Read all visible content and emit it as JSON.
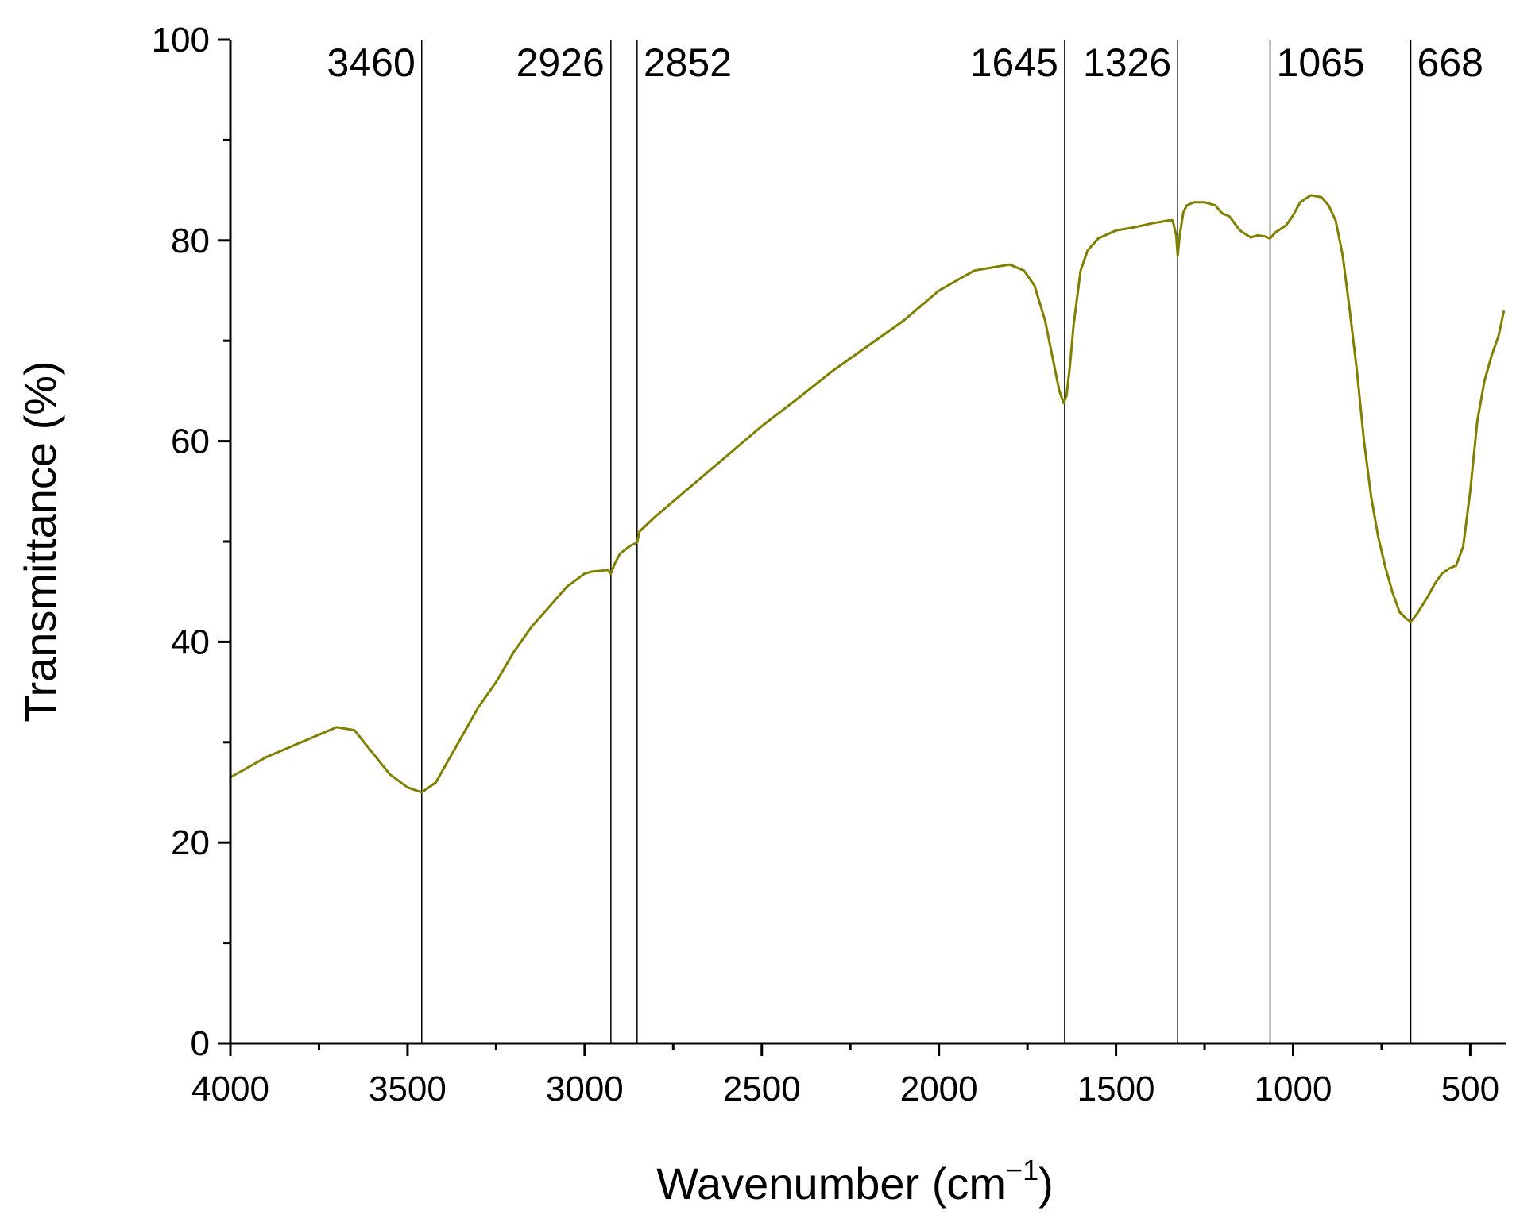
{
  "chart_data": {
    "type": "line",
    "xlabel": "Wavenumber (cm",
    "xlabel_sup": "−1",
    "xlabel_end": ")",
    "ylabel": "Transmittance (%)",
    "xlim": [
      4000,
      400
    ],
    "x_reversed": true,
    "ylim": [
      0,
      100
    ],
    "x_ticks": [
      4000,
      3500,
      3000,
      2500,
      2000,
      1500,
      1000,
      500
    ],
    "x_tick_labels": [
      "4000",
      "3500",
      "3000",
      "2500",
      "2000",
      "1500",
      "1000",
      "500"
    ],
    "y_ticks": [
      0,
      20,
      40,
      60,
      80,
      100
    ],
    "y_tick_labels": [
      "0",
      "20",
      "40",
      "60",
      "80",
      "100"
    ],
    "grid": false,
    "legend": "none",
    "line_color": "#7f7f00",
    "peak_lines": [
      {
        "x": 3460,
        "label": "3460",
        "label_side": "left"
      },
      {
        "x": 2926,
        "label": "2926",
        "label_side": "left"
      },
      {
        "x": 2852,
        "label": "2852",
        "label_side": "right"
      },
      {
        "x": 1645,
        "label": "1645",
        "label_side": "left"
      },
      {
        "x": 1326,
        "label": "1326",
        "label_side": "left"
      },
      {
        "x": 1065,
        "label": "1065",
        "label_side": "right"
      },
      {
        "x": 668,
        "label": "668",
        "label_side": "right"
      }
    ],
    "series": [
      {
        "x": [
          4000,
          3900,
          3800,
          3700,
          3650,
          3600,
          3550,
          3500,
          3460,
          3420,
          3380,
          3300,
          3250,
          3200,
          3150,
          3100,
          3050,
          3000,
          2980,
          2950,
          2935,
          2926,
          2915,
          2900,
          2870,
          2852,
          2845,
          2800,
          2700,
          2600,
          2500,
          2400,
          2300,
          2200,
          2100,
          2000,
          1900,
          1800,
          1760,
          1730,
          1700,
          1680,
          1660,
          1648,
          1640,
          1630,
          1620,
          1600,
          1580,
          1550,
          1500,
          1450,
          1400,
          1350,
          1340,
          1330,
          1326,
          1320,
          1310,
          1300,
          1280,
          1250,
          1220,
          1200,
          1180,
          1150,
          1120,
          1100,
          1080,
          1065,
          1050,
          1020,
          1000,
          980,
          950,
          920,
          900,
          880,
          860,
          840,
          820,
          800,
          780,
          760,
          740,
          720,
          700,
          680,
          668,
          650,
          620,
          600,
          580,
          560,
          540,
          520,
          500,
          480,
          460,
          440,
          420,
          405
        ],
        "y": [
          26.5,
          28.5,
          30.0,
          31.5,
          31.2,
          29.0,
          26.8,
          25.5,
          25.0,
          26.0,
          28.5,
          33.5,
          36.0,
          39.0,
          41.5,
          43.5,
          45.5,
          46.8,
          47.0,
          47.1,
          47.2,
          46.8,
          47.8,
          48.8,
          49.6,
          49.9,
          51.0,
          52.5,
          55.5,
          58.5,
          61.5,
          64.2,
          67.0,
          69.5,
          72.0,
          75.0,
          77.0,
          77.6,
          77.0,
          75.5,
          72.0,
          68.5,
          65.0,
          63.8,
          64.5,
          67.5,
          71.5,
          77.0,
          79.0,
          80.2,
          81.0,
          81.3,
          81.7,
          82.0,
          82.0,
          80.5,
          78.5,
          80.5,
          82.8,
          83.5,
          83.8,
          83.8,
          83.5,
          82.7,
          82.4,
          81.0,
          80.3,
          80.5,
          80.4,
          80.2,
          80.8,
          81.5,
          82.5,
          83.8,
          84.5,
          84.3,
          83.5,
          82.0,
          78.5,
          73.0,
          67.0,
          60.0,
          54.5,
          50.5,
          47.5,
          45.0,
          43.0,
          42.3,
          42.0,
          42.8,
          44.5,
          45.8,
          46.8,
          47.3,
          47.6,
          49.5,
          55.0,
          62.0,
          66.0,
          68.5,
          70.5,
          73.0
        ]
      }
    ]
  }
}
